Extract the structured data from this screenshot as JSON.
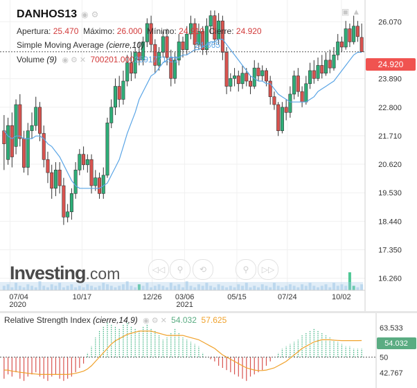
{
  "instrument": {
    "name": "DANHOS13"
  },
  "ohlc": {
    "open_label": "Apertura:",
    "open_value": "25.470",
    "high_label": "Máximo:",
    "high_value": "26.000",
    "low_label": "Mínimo:",
    "low_value": "24.910",
    "close_label": "Cierre:",
    "close_value": "24.920"
  },
  "sma_legend": {
    "label": "Simple Moving Average",
    "params": "(cierre,10)",
    "value": "24.865"
  },
  "volume_legend": {
    "label": "Volume",
    "params": "(9)",
    "value1": "700201.000",
    "value2": "2591771.31"
  },
  "rsi_legend": {
    "label": "Relative Strength Index",
    "params": "(cierre,14,9)",
    "value1": "54.032",
    "value2": "57.625"
  },
  "logo": {
    "text": "Investing",
    "suffix": ".com"
  },
  "icons": {
    "legend_icons": [
      "eye-icon",
      "gear-icon",
      "close-icon"
    ],
    "nav_buttons": [
      "rewind-icon",
      "zoom-out-icon",
      "reset-icon",
      "zoom-in-icon",
      "forward-icon"
    ],
    "top_right": [
      "screenshot-icon",
      "settings-icon"
    ]
  },
  "colors": {
    "up": "#2eae78",
    "down": "#d9534f",
    "sma": "#5aa5e6",
    "rsi": "#f0a12a",
    "price_tag": "#f05350",
    "rsi_tag": "#5aac82"
  },
  "chart_data": [
    {
      "type": "candlestick",
      "price_axis_ticks": [
        "26.070",
        "24.920",
        "23.890",
        "22.800",
        "21.710",
        "20.620",
        "19.530",
        "18.440",
        "17.350",
        "16.260"
      ],
      "time_axis_ticks": [
        "07/04\n2020",
        "10/17",
        "12/26",
        "03/06\n2021",
        "05/15",
        "07/24",
        "10/02"
      ],
      "ylim": [
        15.8,
        26.9
      ],
      "last_price": 24.92,
      "candles": [
        [
          21.9,
          21.4,
          22.5,
          20.4
        ],
        [
          20.8,
          22.1,
          22.4,
          20.6
        ],
        [
          22.1,
          20.9,
          22.6,
          20.5
        ],
        [
          21.3,
          22.9,
          23.1,
          21.0
        ],
        [
          22.9,
          21.6,
          23.3,
          21.3
        ],
        [
          21.6,
          20.5,
          21.9,
          20.3
        ],
        [
          20.5,
          21.9,
          22.2,
          20.2
        ],
        [
          21.9,
          22.1,
          22.6,
          21.6
        ],
        [
          22.1,
          22.8,
          23.2,
          21.9
        ],
        [
          22.8,
          21.8,
          23.0,
          21.5
        ],
        [
          21.8,
          20.8,
          22.1,
          20.5
        ],
        [
          20.8,
          20.3,
          21.1,
          19.9
        ],
        [
          20.3,
          19.7,
          20.6,
          19.3
        ],
        [
          19.7,
          20.4,
          20.7,
          19.4
        ],
        [
          20.4,
          19.8,
          20.7,
          19.5
        ],
        [
          19.8,
          18.6,
          20.1,
          18.3
        ],
        [
          18.6,
          18.8,
          19.1,
          18.4
        ],
        [
          18.8,
          19.5,
          19.7,
          18.5
        ],
        [
          19.5,
          20.4,
          20.7,
          19.3
        ],
        [
          20.4,
          21.0,
          21.2,
          20.2
        ],
        [
          21.0,
          20.6,
          21.3,
          20.4
        ],
        [
          20.6,
          20.8,
          21.0,
          20.3
        ],
        [
          20.8,
          19.8,
          21.0,
          19.5
        ],
        [
          19.8,
          20.1,
          20.4,
          19.6
        ],
        [
          20.1,
          19.5,
          20.3,
          19.3
        ],
        [
          19.5,
          20.2,
          20.5,
          19.3
        ],
        [
          20.2,
          22.2,
          22.4,
          20.1
        ],
        [
          22.2,
          22.8,
          23.1,
          22.0
        ],
        [
          22.8,
          23.6,
          23.9,
          22.5
        ],
        [
          23.6,
          23.1,
          24.0,
          22.8
        ],
        [
          23.1,
          23.8,
          24.2,
          22.9
        ],
        [
          23.8,
          24.5,
          24.8,
          23.6
        ],
        [
          24.5,
          24.1,
          24.9,
          23.8
        ],
        [
          24.1,
          24.9,
          25.1,
          23.9
        ],
        [
          24.9,
          24.6,
          25.3,
          24.4
        ],
        [
          24.6,
          25.3,
          25.5,
          24.4
        ],
        [
          25.3,
          26.0,
          26.2,
          25.1
        ],
        [
          26.0,
          25.2,
          26.3,
          24.9
        ],
        [
          25.2,
          24.4,
          25.4,
          24.1
        ],
        [
          24.4,
          24.9,
          25.1,
          24.2
        ],
        [
          24.9,
          25.5,
          25.7,
          24.7
        ],
        [
          25.5,
          24.7,
          25.8,
          24.4
        ],
        [
          24.7,
          23.9,
          25.0,
          23.6
        ],
        [
          23.9,
          24.6,
          24.9,
          23.7
        ],
        [
          24.6,
          25.3,
          25.6,
          24.4
        ],
        [
          25.3,
          25.0,
          25.5,
          24.7
        ],
        [
          25.0,
          25.6,
          25.9,
          24.8
        ],
        [
          25.6,
          26.0,
          26.3,
          25.4
        ],
        [
          26.0,
          25.2,
          26.2,
          24.9
        ],
        [
          25.2,
          25.7,
          26.0,
          25.0
        ],
        [
          25.7,
          25.0,
          25.9,
          24.8
        ],
        [
          25.0,
          25.9,
          26.2,
          24.8
        ],
        [
          25.9,
          26.3,
          26.5,
          25.6
        ],
        [
          26.3,
          25.4,
          26.5,
          25.2
        ],
        [
          25.4,
          26.1,
          26.4,
          25.2
        ],
        [
          26.1,
          24.9,
          26.3,
          24.6
        ],
        [
          24.9,
          23.6,
          25.1,
          23.3
        ],
        [
          23.6,
          23.9,
          24.1,
          23.4
        ],
        [
          23.9,
          24.0,
          24.3,
          23.6
        ],
        [
          24.0,
          23.7,
          24.2,
          23.4
        ],
        [
          23.7,
          24.1,
          24.4,
          23.5
        ],
        [
          24.1,
          23.8,
          24.3,
          23.6
        ],
        [
          23.8,
          23.6,
          24.0,
          23.3
        ],
        [
          23.6,
          24.3,
          24.6,
          23.5
        ],
        [
          24.3,
          24.0,
          24.5,
          23.8
        ],
        [
          24.0,
          24.2,
          24.4,
          23.8
        ],
        [
          24.2,
          23.8,
          24.3,
          23.6
        ],
        [
          23.8,
          23.2,
          24.0,
          22.9
        ],
        [
          23.2,
          22.9,
          23.4,
          22.7
        ],
        [
          22.9,
          21.9,
          23.0,
          21.7
        ],
        [
          21.9,
          22.8,
          23.0,
          21.8
        ],
        [
          22.8,
          22.6,
          23.1,
          22.3
        ],
        [
          22.6,
          23.3,
          23.6,
          22.4
        ],
        [
          23.3,
          24.0,
          24.2,
          23.1
        ],
        [
          24.0,
          23.4,
          24.3,
          23.2
        ],
        [
          23.4,
          23.0,
          23.6,
          22.8
        ],
        [
          23.0,
          23.7,
          24.0,
          22.9
        ],
        [
          23.7,
          24.2,
          24.5,
          23.5
        ],
        [
          24.2,
          23.9,
          24.6,
          23.7
        ],
        [
          23.9,
          24.4,
          24.7,
          23.8
        ],
        [
          24.4,
          24.1,
          24.8,
          23.9
        ],
        [
          24.1,
          24.6,
          24.9,
          24.0
        ],
        [
          24.6,
          24.3,
          25.0,
          24.1
        ],
        [
          24.3,
          24.8,
          25.1,
          24.2
        ],
        [
          24.8,
          25.3,
          25.6,
          24.6
        ],
        [
          25.3,
          25.1,
          25.5,
          24.9
        ],
        [
          25.1,
          25.8,
          26.1,
          25.0
        ],
        [
          25.8,
          25.3,
          26.0,
          25.1
        ],
        [
          25.3,
          25.9,
          26.3,
          25.2
        ],
        [
          25.9,
          25.5,
          26.1,
          25.3
        ],
        [
          25.47,
          24.92,
          26.0,
          24.91
        ]
      ],
      "sma_series": [
        21.9,
        21.7,
        21.6,
        21.7,
        21.7,
        21.6,
        21.6,
        21.6,
        21.7,
        21.7,
        21.6,
        21.4,
        21.3,
        21.1,
        20.9,
        20.6,
        20.3,
        20.0,
        19.8,
        19.7,
        19.7,
        19.7,
        19.7,
        19.7,
        19.7,
        19.8,
        19.9,
        20.2,
        20.5,
        20.8,
        21.3,
        21.8,
        22.2,
        22.6,
        23.1,
        23.4,
        23.7,
        24.0,
        24.1,
        24.3,
        24.5,
        24.6,
        24.7,
        24.7,
        24.7,
        24.8,
        24.8,
        24.9,
        25.0,
        25.0,
        25.1,
        25.2,
        25.3,
        25.3,
        25.4,
        25.4,
        25.2,
        25.0,
        24.8,
        24.6,
        24.4,
        24.2,
        24.0,
        23.9,
        23.8,
        23.8,
        23.7,
        23.7,
        23.5,
        23.3,
        23.2,
        23.1,
        23.0,
        23.0,
        23.0,
        23.0,
        23.0,
        23.1,
        23.2,
        23.4,
        23.5,
        23.6,
        23.7,
        23.8,
        24.0,
        24.2,
        24.4,
        24.6,
        24.8,
        24.9,
        24.9
      ],
      "volume_series": [
        3,
        4,
        2,
        5,
        3,
        2,
        4,
        3,
        2,
        6,
        3,
        2,
        4,
        3,
        5,
        2,
        3,
        4,
        2,
        3,
        2,
        4,
        3,
        2,
        3,
        5,
        4,
        3,
        2,
        3,
        4,
        6,
        3,
        2,
        4,
        3,
        5,
        2,
        3,
        4,
        3,
        2,
        5,
        3,
        4,
        2,
        6,
        3,
        2,
        4,
        3,
        5,
        3,
        2,
        4,
        3,
        2,
        3,
        2,
        4,
        3,
        5,
        2,
        3,
        2,
        4,
        3,
        2,
        5,
        3,
        2,
        3,
        4,
        3,
        2,
        4,
        3,
        5,
        3,
        2,
        3,
        4,
        2,
        5,
        3,
        4,
        3,
        12,
        3,
        2,
        4
      ],
      "volume_highlight": [
        34,
        87,
        88
      ]
    },
    {
      "type": "bar",
      "name": "Relative Strength Index",
      "axis_ticks": [
        "63.533",
        "54.032",
        "50",
        "42.767"
      ],
      "ylim": [
        37,
        69
      ],
      "center": 50,
      "rsi_values": [
        40,
        42,
        41,
        43,
        40,
        39,
        41,
        42,
        43,
        41,
        40,
        39,
        41,
        42,
        40,
        39,
        40,
        41,
        43,
        45,
        47,
        52,
        55,
        59,
        62,
        64,
        66,
        65,
        64,
        63,
        65,
        66,
        64,
        63,
        62,
        64,
        65,
        63,
        62,
        60,
        58,
        59,
        61,
        63,
        61,
        59,
        58,
        57,
        56,
        55,
        52,
        50,
        49,
        48,
        46,
        45,
        44,
        43,
        42,
        41,
        40,
        39,
        41,
        42,
        43,
        44,
        46,
        48,
        50,
        52,
        54,
        55,
        56,
        57,
        58,
        60,
        61,
        62,
        63,
        62,
        61,
        60,
        59,
        58,
        57,
        56,
        55,
        55,
        54,
        54,
        54
      ],
      "signal_series": [
        44,
        44,
        43.5,
        43.3,
        43,
        42.8,
        42.5,
        42.3,
        42.2,
        42,
        42,
        42,
        42,
        42,
        42,
        42,
        42,
        42.2,
        42.5,
        43,
        43.5,
        44.5,
        46,
        48,
        50,
        52,
        54,
        56,
        57.5,
        58.5,
        59.5,
        60.5,
        61,
        61.5,
        62,
        62,
        62,
        62,
        61.5,
        61,
        60.5,
        60,
        60,
        60,
        60,
        60,
        59.5,
        59,
        58.5,
        58,
        57,
        56,
        55,
        54,
        52.5,
        51,
        50,
        49,
        48,
        47,
        46,
        45,
        44.5,
        44,
        43.8,
        43.8,
        44,
        44.5,
        45,
        46,
        47,
        48,
        49.5,
        51,
        52.5,
        54,
        55,
        56,
        57,
        57.5,
        58,
        58,
        58,
        57.8,
        57.7,
        57.6,
        57.6,
        57.6,
        57.6,
        57.6,
        57.625
      ],
      "last_value": 54.032
    }
  ]
}
